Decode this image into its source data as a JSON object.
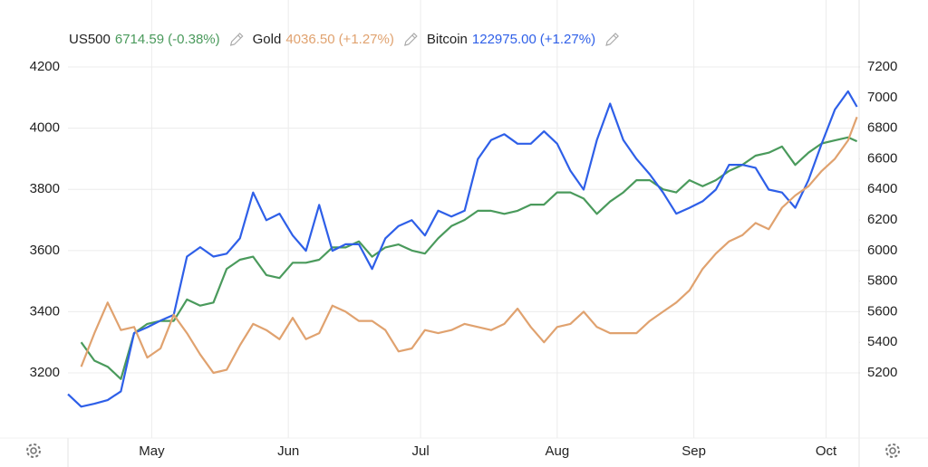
{
  "chart_data": {
    "type": "line",
    "x": [
      0,
      3,
      6,
      9,
      12,
      15,
      18,
      21,
      24,
      27,
      30,
      33,
      36,
      39,
      42,
      45,
      48,
      51,
      54,
      57,
      60,
      63,
      66,
      69,
      72,
      75,
      78,
      81,
      84,
      87,
      90,
      93,
      96,
      99,
      102,
      105,
      108,
      111,
      114,
      117,
      120,
      123,
      126,
      129,
      132,
      135,
      138,
      141,
      144,
      147,
      150,
      153,
      156,
      159,
      162,
      165,
      168,
      171,
      174,
      177,
      179
    ],
    "xlim": [
      0,
      179.5
    ],
    "xticks": [
      {
        "value": 19,
        "label": "May"
      },
      {
        "value": 50,
        "label": "Jun"
      },
      {
        "value": 80,
        "label": "Jul"
      },
      {
        "value": 111,
        "label": "Aug"
      },
      {
        "value": 142,
        "label": "Sep"
      },
      {
        "value": 172,
        "label": "Oct"
      }
    ],
    "ylim": [
      2987,
      4419
    ],
    "yticks": [
      3200,
      3400,
      3600,
      3800,
      4000,
      4200
    ],
    "y2lim": [
      4774,
      7638
    ],
    "y2ticks": [
      5200,
      5400,
      5600,
      5800,
      6000,
      6200,
      6400,
      6600,
      6800,
      7000,
      7200
    ],
    "y3lim": [
      77489,
      137633
    ],
    "grid": true,
    "series": [
      {
        "name": "US500",
        "legend_value": "6714.59",
        "change": "(-0.38%)",
        "color": "#4a9a5c",
        "axis": "y2",
        "values": [
          null,
          5400,
          5280,
          5240,
          5160,
          5460,
          5520,
          5540,
          5540,
          5680,
          5640,
          5660,
          5880,
          5940,
          5960,
          5840,
          5820,
          5920,
          5920,
          5940,
          6020,
          6020,
          6060,
          5960,
          6020,
          6040,
          6000,
          5980,
          6080,
          6160,
          6200,
          6260,
          6260,
          6240,
          6260,
          6300,
          6300,
          6380,
          6380,
          6340,
          6240,
          6320,
          6380,
          6460,
          6460,
          6400,
          6380,
          6460,
          6420,
          6460,
          6520,
          6560,
          6620,
          6640,
          6680,
          6560,
          6640,
          6700,
          6720,
          6740,
          6714.59
        ]
      },
      {
        "name": "Gold",
        "legend_value": "4036.50",
        "change": "(+1.27%)",
        "color": "#e0a26f",
        "axis": "y",
        "values": [
          null,
          3220,
          3330,
          3430,
          3340,
          3350,
          3250,
          3280,
          3390,
          3330,
          3260,
          3200,
          3210,
          3290,
          3360,
          3340,
          3310,
          3380,
          3310,
          3330,
          3420,
          3400,
          3370,
          3370,
          3340,
          3270,
          3280,
          3340,
          3330,
          3340,
          3360,
          3350,
          3340,
          3360,
          3410,
          3350,
          3300,
          3350,
          3360,
          3400,
          3350,
          3330,
          3330,
          3330,
          3370,
          3400,
          3430,
          3470,
          3540,
          3590,
          3630,
          3650,
          3690,
          3670,
          3740,
          3780,
          3810,
          3860,
          3900,
          3960,
          4036.5
        ]
      },
      {
        "name": "Bitcoin",
        "legend_value": "122975.00",
        "change": "(+1.27%)",
        "color": "#2e5fe8",
        "axis": "y3",
        "values": [
          83500,
          81800,
          82200,
          82700,
          83900,
          91900,
          92700,
          93600,
          94400,
          102400,
          103700,
          102400,
          102800,
          104900,
          111200,
          107400,
          108300,
          105300,
          103200,
          109500,
          103200,
          104100,
          104100,
          100700,
          104900,
          106600,
          107400,
          105300,
          108700,
          107900,
          108700,
          115800,
          118400,
          119200,
          117900,
          117900,
          119600,
          117900,
          114200,
          111600,
          118400,
          123400,
          118400,
          115800,
          113700,
          111200,
          108300,
          109100,
          110000,
          111600,
          115000,
          115000,
          114600,
          111600,
          111200,
          109100,
          112900,
          117900,
          122600,
          125100,
          122975
        ]
      }
    ]
  }
}
